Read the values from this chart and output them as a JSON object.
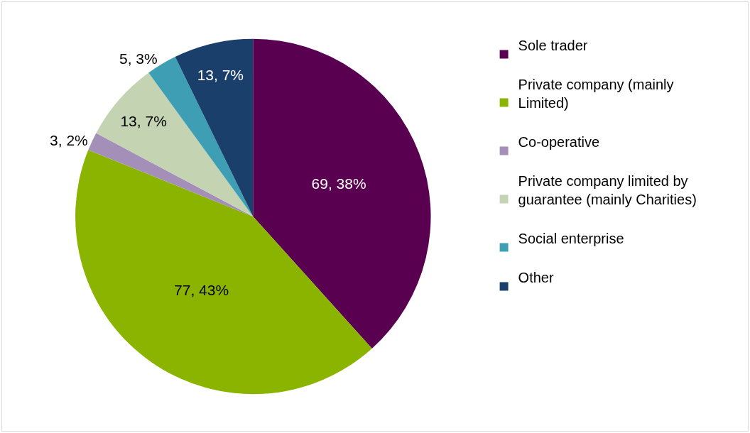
{
  "chart_data": {
    "type": "pie",
    "categories": [
      "Sole trader",
      "Private company (mainly Limited)",
      "Co-operative",
      "Private company limited by guarantee (mainly Charities)",
      "Social enterprise",
      "Other"
    ],
    "values": [
      69,
      77,
      3,
      13,
      5,
      13
    ],
    "colors": [
      "#5a0050",
      "#8bb400",
      "#a38fb8",
      "#c4d3b2",
      "#3e9fb4",
      "#1a3f6b"
    ],
    "value_labels": [
      "69, 38%",
      "77, 43%",
      "3, 2%",
      "13, 7%",
      "5, 3%",
      "13, 7%"
    ],
    "legend": "right"
  }
}
